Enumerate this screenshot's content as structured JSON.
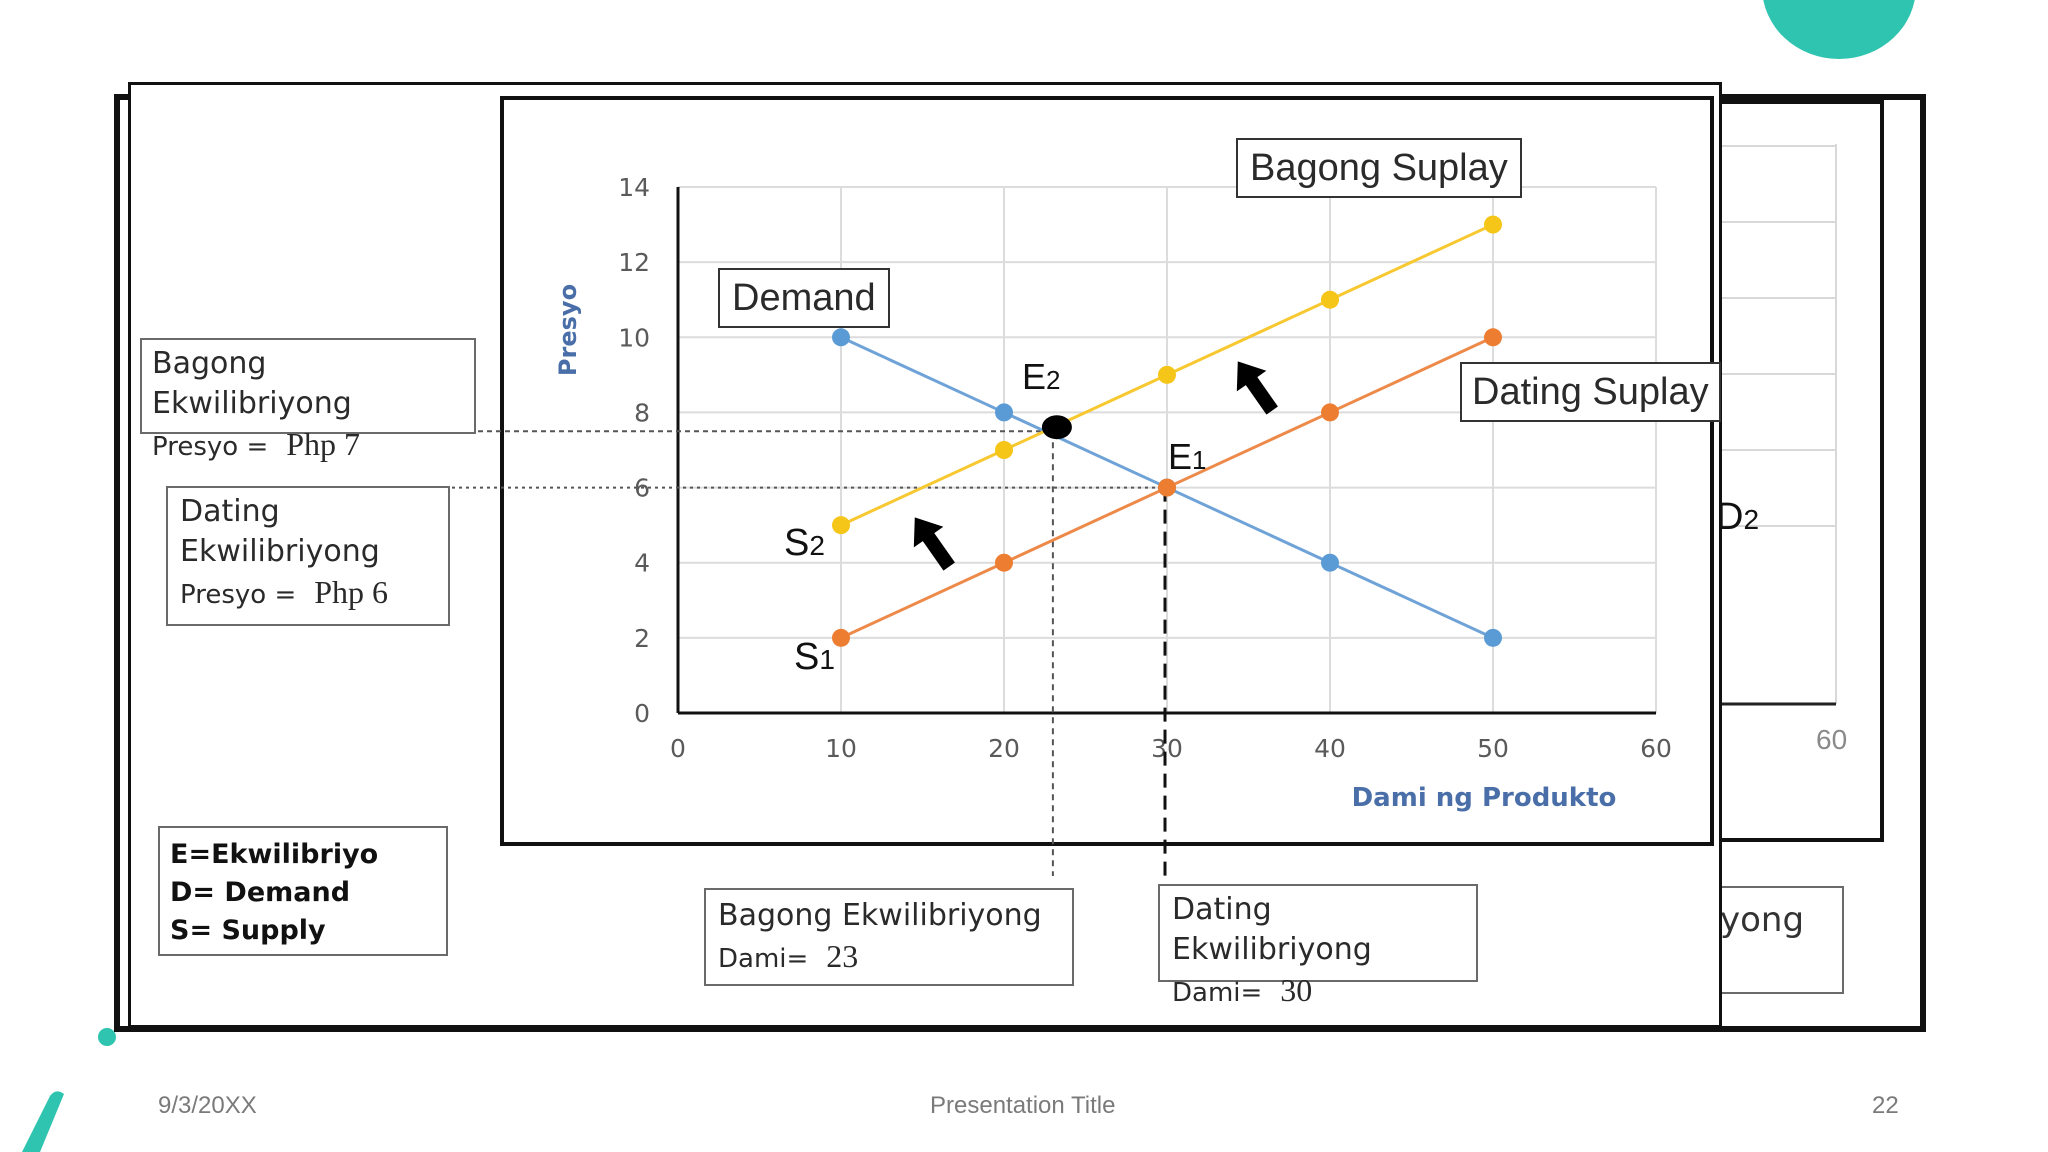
{
  "chart_data": {
    "type": "line",
    "xlabel": "Dami ng Produkto",
    "ylabel": "Presyo",
    "xlim": [
      0,
      60
    ],
    "ylim": [
      0,
      14
    ],
    "x_ticks": [
      0,
      10,
      20,
      30,
      40,
      50,
      60
    ],
    "y_ticks": [
      0,
      2,
      4,
      6,
      8,
      10,
      12,
      14
    ],
    "grid": true,
    "series": [
      {
        "name": "Demand",
        "color": "#6fa3d8",
        "marker": "#5b9bd5",
        "points": [
          [
            10,
            10
          ],
          [
            20,
            8
          ],
          [
            30,
            6
          ],
          [
            40,
            4
          ],
          [
            50,
            2
          ]
        ]
      },
      {
        "name": "Dating Suplay",
        "color": "#ed8a4a",
        "marker": "#ed7d31",
        "points": [
          [
            10,
            2
          ],
          [
            20,
            4
          ],
          [
            30,
            6
          ],
          [
            40,
            8
          ],
          [
            50,
            10
          ]
        ]
      },
      {
        "name": "Bagong Suplay",
        "color": "#f7c830",
        "marker": "#f5c518",
        "points": [
          [
            10,
            5
          ],
          [
            20,
            7
          ],
          [
            30,
            9
          ],
          [
            40,
            11
          ],
          [
            50,
            13
          ]
        ]
      }
    ],
    "annotations": [
      {
        "text": "E2",
        "x": 23,
        "y": 7.5
      },
      {
        "text": "E1",
        "x": 30,
        "y": 6
      },
      {
        "text": "S2"
      },
      {
        "text": "S1"
      },
      {
        "text": "D2"
      }
    ],
    "back_chart_tick": "60"
  },
  "labels": {
    "demand": "Demand",
    "bagong_suplay": "Bagong Suplay",
    "dating_suplay": "Dating Suplay",
    "e2_main": "E",
    "e2_sub": "2",
    "e1_main": "E",
    "e1_sub": "1",
    "s2_main": "S",
    "s2_sub": "2",
    "s1_main": "S",
    "s1_sub": "1",
    "d2_main": "D",
    "d2_sub": "2",
    "yong": "yong"
  },
  "boxes": {
    "bagong_presyo": {
      "line1": "Bagong Ekwilibriyong",
      "line2_label": "Presyo =",
      "value": "Php 7"
    },
    "dating_presyo": {
      "line1": "Dating",
      "line2": "Ekwilibriyong",
      "line3_label": "Presyo =",
      "value": "Php 6"
    },
    "bagong_dami": {
      "line1": "Bagong Ekwilibriyong",
      "line2_label": "Dami=",
      "value": "23"
    },
    "dating_dami": {
      "line1": "Dating Ekwilibriyong",
      "line2_label": "Dami=",
      "value": "30"
    },
    "key": {
      "line1": "E=Ekwilibriyo",
      "line2": "D= Demand",
      "line3": "S= Supply"
    }
  },
  "footer": {
    "date": "9/3/20XX",
    "title": "Presentation Title",
    "page": "22"
  }
}
